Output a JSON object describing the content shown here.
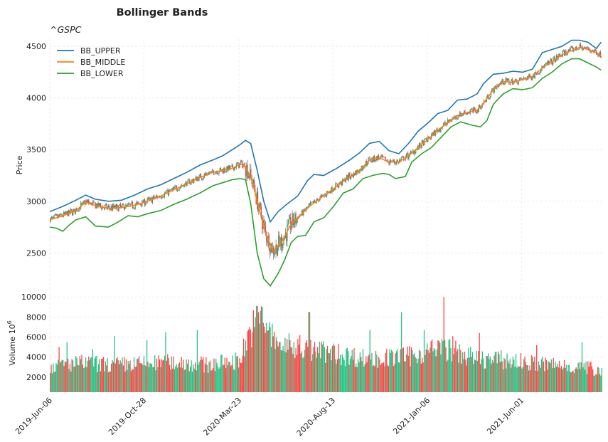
{
  "chart_data": {
    "type": "line",
    "title": "Bollinger Bands",
    "subtitle": "^GSPC",
    "price_panel": {
      "ylabel": "Price",
      "ylim": [
        2130,
        4570
      ],
      "yticks": [
        2500,
        3000,
        3500,
        4000,
        4500
      ],
      "candles": "OHLC candlesticks, green up / red down, follow BB_MIDDLE closely",
      "series": [
        {
          "name": "BB_UPPER",
          "color": "#1f77b4",
          "points": [
            [
              0,
              2900
            ],
            [
              20,
              2950
            ],
            [
              40,
              3010
            ],
            [
              55,
              3060
            ],
            [
              70,
              3020
            ],
            [
              90,
              3000
            ],
            [
              110,
              3010
            ],
            [
              130,
              3060
            ],
            [
              150,
              3120
            ],
            [
              170,
              3160
            ],
            [
              190,
              3220
            ],
            [
              210,
              3280
            ],
            [
              230,
              3350
            ],
            [
              250,
              3400
            ],
            [
              265,
              3440
            ],
            [
              280,
              3500
            ],
            [
              292,
              3550
            ],
            [
              300,
              3590
            ],
            [
              308,
              3560
            ],
            [
              318,
              3300
            ],
            [
              328,
              3000
            ],
            [
              338,
              2800
            ],
            [
              350,
              2900
            ],
            [
              365,
              2980
            ],
            [
              380,
              3050
            ],
            [
              395,
              3200
            ],
            [
              405,
              3260
            ],
            [
              420,
              3250
            ],
            [
              440,
              3320
            ],
            [
              460,
              3400
            ],
            [
              475,
              3470
            ],
            [
              490,
              3560
            ],
            [
              505,
              3580
            ],
            [
              520,
              3490
            ],
            [
              535,
              3460
            ],
            [
              550,
              3560
            ],
            [
              565,
              3680
            ],
            [
              580,
              3760
            ],
            [
              595,
              3850
            ],
            [
              610,
              3880
            ],
            [
              625,
              3980
            ],
            [
              640,
              3990
            ],
            [
              655,
              4040
            ],
            [
              665,
              4140
            ],
            [
              680,
              4230
            ],
            [
              695,
              4240
            ],
            [
              710,
              4260
            ],
            [
              725,
              4250
            ],
            [
              740,
              4280
            ],
            [
              755,
              4440
            ],
            [
              770,
              4470
            ],
            [
              785,
              4500
            ],
            [
              800,
              4560
            ],
            [
              812,
              4560
            ],
            [
              825,
              4540
            ],
            [
              838,
              4480
            ],
            [
              845,
              4540
            ]
          ]
        },
        {
          "name": "BB_MIDDLE",
          "color": "#ff7f0e",
          "points": [
            [
              0,
              2820
            ],
            [
              20,
              2860
            ],
            [
              40,
              2910
            ],
            [
              55,
              2990
            ],
            [
              70,
              2960
            ],
            [
              90,
              2930
            ],
            [
              110,
              2940
            ],
            [
              130,
              2960
            ],
            [
              150,
              3000
            ],
            [
              170,
              3050
            ],
            [
              190,
              3110
            ],
            [
              210,
              3170
            ],
            [
              230,
              3230
            ],
            [
              250,
              3280
            ],
            [
              265,
              3300
            ],
            [
              280,
              3320
            ],
            [
              292,
              3360
            ],
            [
              300,
              3340
            ],
            [
              310,
              3200
            ],
            [
              320,
              2950
            ],
            [
              330,
              2700
            ],
            [
              342,
              2520
            ],
            [
              355,
              2600
            ],
            [
              370,
              2780
            ],
            [
              385,
              2870
            ],
            [
              400,
              2960
            ],
            [
              415,
              3030
            ],
            [
              430,
              3100
            ],
            [
              445,
              3170
            ],
            [
              460,
              3240
            ],
            [
              475,
              3300
            ],
            [
              490,
              3400
            ],
            [
              505,
              3420
            ],
            [
              520,
              3380
            ],
            [
              535,
              3380
            ],
            [
              550,
              3440
            ],
            [
              565,
              3520
            ],
            [
              580,
              3600
            ],
            [
              595,
              3690
            ],
            [
              610,
              3760
            ],
            [
              625,
              3830
            ],
            [
              640,
              3860
            ],
            [
              655,
              3880
            ],
            [
              665,
              3950
            ],
            [
              680,
              4080
            ],
            [
              695,
              4160
            ],
            [
              710,
              4150
            ],
            [
              725,
              4180
            ],
            [
              740,
              4210
            ],
            [
              755,
              4290
            ],
            [
              770,
              4350
            ],
            [
              785,
              4420
            ],
            [
              800,
              4460
            ],
            [
              812,
              4490
            ],
            [
              825,
              4470
            ],
            [
              838,
              4440
            ],
            [
              845,
              4410
            ]
          ]
        },
        {
          "name": "BB_LOWER",
          "color": "#2ca02c",
          "points": [
            [
              0,
              2750
            ],
            [
              10,
              2740
            ],
            [
              20,
              2710
            ],
            [
              30,
              2770
            ],
            [
              40,
              2820
            ],
            [
              55,
              2850
            ],
            [
              70,
              2760
            ],
            [
              90,
              2750
            ],
            [
              105,
              2800
            ],
            [
              120,
              2860
            ],
            [
              135,
              2850
            ],
            [
              150,
              2880
            ],
            [
              170,
              2910
            ],
            [
              190,
              2970
            ],
            [
              210,
              3020
            ],
            [
              230,
              3080
            ],
            [
              250,
              3150
            ],
            [
              265,
              3180
            ],
            [
              280,
              3210
            ],
            [
              292,
              3220
            ],
            [
              300,
              3210
            ],
            [
              308,
              2980
            ],
            [
              318,
              2500
            ],
            [
              328,
              2250
            ],
            [
              338,
              2180
            ],
            [
              350,
              2300
            ],
            [
              360,
              2430
            ],
            [
              370,
              2600
            ],
            [
              380,
              2660
            ],
            [
              392,
              2670
            ],
            [
              405,
              2800
            ],
            [
              420,
              2840
            ],
            [
              435,
              2950
            ],
            [
              450,
              3080
            ],
            [
              465,
              3120
            ],
            [
              480,
              3220
            ],
            [
              495,
              3250
            ],
            [
              510,
              3270
            ],
            [
              520,
              3260
            ],
            [
              530,
              3220
            ],
            [
              545,
              3240
            ],
            [
              555,
              3380
            ],
            [
              570,
              3460
            ],
            [
              585,
              3520
            ],
            [
              600,
              3620
            ],
            [
              615,
              3720
            ],
            [
              630,
              3770
            ],
            [
              645,
              3740
            ],
            [
              660,
              3720
            ],
            [
              670,
              3780
            ],
            [
              680,
              3940
            ],
            [
              695,
              4040
            ],
            [
              710,
              4090
            ],
            [
              725,
              4080
            ],
            [
              740,
              4100
            ],
            [
              755,
              4190
            ],
            [
              770,
              4250
            ],
            [
              785,
              4330
            ],
            [
              800,
              4380
            ],
            [
              812,
              4380
            ],
            [
              825,
              4340
            ],
            [
              838,
              4300
            ],
            [
              845,
              4270
            ]
          ]
        }
      ]
    },
    "volume_panel": {
      "ylabel": "Volume",
      "unit": "10^6",
      "ylim": [
        500,
        10300
      ],
      "yticks": [
        2000,
        4000,
        6000,
        8000,
        10000
      ],
      "profile": [
        [
          0,
          3200
        ],
        [
          25,
          3400
        ],
        [
          50,
          3500
        ],
        [
          100,
          3300
        ],
        [
          200,
          3600
        ],
        [
          240,
          3300
        ],
        [
          290,
          3800
        ],
        [
          305,
          6500
        ],
        [
          320,
          8200
        ],
        [
          330,
          7500
        ],
        [
          345,
          5600
        ],
        [
          380,
          5000
        ],
        [
          420,
          4700
        ],
        [
          460,
          4200
        ],
        [
          500,
          3900
        ],
        [
          550,
          4200
        ],
        [
          600,
          5100
        ],
        [
          620,
          4700
        ],
        [
          650,
          4000
        ],
        [
          700,
          3800
        ],
        [
          750,
          3400
        ],
        [
          800,
          3200
        ],
        [
          845,
          2800
        ]
      ],
      "spikes": [
        [
          14,
          5000
        ],
        [
          25,
          5500
        ],
        [
          65,
          4800
        ],
        [
          98,
          6100
        ],
        [
          148,
          5700
        ],
        [
          177,
          6500
        ],
        [
          225,
          6700
        ],
        [
          318,
          9100
        ],
        [
          325,
          9000
        ],
        [
          383,
          6200
        ],
        [
          397,
          8500
        ],
        [
          490,
          6700
        ],
        [
          538,
          8500
        ],
        [
          573,
          6700
        ],
        [
          604,
          10000
        ],
        [
          617,
          6100
        ],
        [
          658,
          6400
        ],
        [
          745,
          5200
        ],
        [
          815,
          5500
        ]
      ],
      "colors": {
        "up": "#26c281",
        "down": "#ff4444"
      }
    },
    "x_axis": {
      "type": "date",
      "xlim": [
        0,
        847
      ],
      "ticks": [
        {
          "label": "2019-Jun-06",
          "x": 0
        },
        {
          "label": "2019-Oct-28",
          "x": 144
        },
        {
          "label": "2020-Mar-23",
          "x": 290
        },
        {
          "label": "2020-Aug-13",
          "x": 434
        },
        {
          "label": "2021-Jan-06",
          "x": 579
        },
        {
          "label": "2021-Jun-01",
          "x": 723
        }
      ]
    },
    "legend": {
      "placement": "top-left"
    },
    "grid": true
  }
}
